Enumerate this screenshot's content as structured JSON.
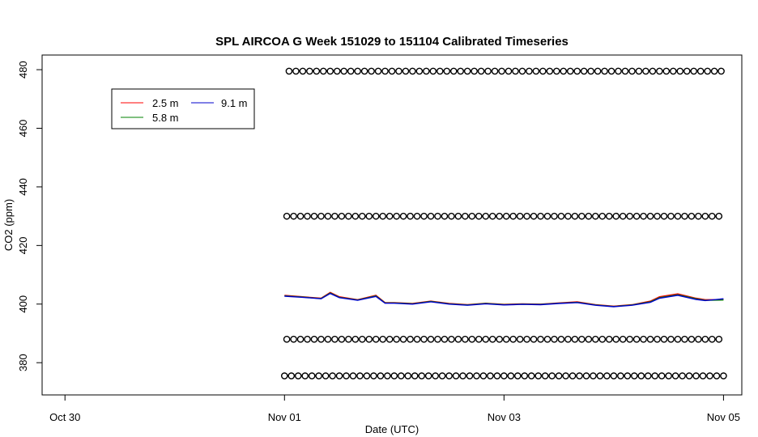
{
  "chart_data": {
    "type": "line",
    "title": "SPL AIRCOA G  Week 151029 to 151104  Calibrated Timeseries",
    "xlabel": "Date (UTC)",
    "ylabel": "CO2 (ppm)",
    "xlim": [
      "2015-10-29T19:00",
      "2015-11-05T04:00"
    ],
    "ylim": [
      369,
      485
    ],
    "x_ticks": [
      {
        "label": "Oct 30",
        "date": "2015-10-30"
      },
      {
        "label": "Nov 01",
        "date": "2015-11-01"
      },
      {
        "label": "Nov 03",
        "date": "2015-11-03"
      },
      {
        "label": "Nov 05",
        "date": "2015-11-05"
      }
    ],
    "y_ticks": [
      380,
      400,
      420,
      440,
      460,
      480
    ],
    "legend": {
      "position": "top-left",
      "entries": [
        {
          "label": "2.5 m",
          "color": "#ff0000"
        },
        {
          "label": "5.8 m",
          "color": "#008000"
        },
        {
          "label": "9.1 m",
          "color": "#0000cc"
        }
      ]
    },
    "series": [
      {
        "name": "2.5 m",
        "color": "#ff0000",
        "x": [
          "2015-11-01T00:00",
          "2015-11-01T04:00",
          "2015-11-01T08:00",
          "2015-11-01T10:00",
          "2015-11-01T12:00",
          "2015-11-01T16:00",
          "2015-11-01T20:00",
          "2015-11-01T22:00",
          "2015-11-02T00:00",
          "2015-11-02T04:00",
          "2015-11-02T08:00",
          "2015-11-02T12:00",
          "2015-11-02T16:00",
          "2015-11-02T20:00",
          "2015-11-03T00:00",
          "2015-11-03T04:00",
          "2015-11-03T08:00",
          "2015-11-03T12:00",
          "2015-11-03T16:00",
          "2015-11-03T20:00",
          "2015-11-04T00:00",
          "2015-11-04T04:00",
          "2015-11-04T08:00",
          "2015-11-04T10:00",
          "2015-11-04T14:00",
          "2015-11-04T18:00",
          "2015-11-04T20:00",
          "2015-11-05T00:00"
        ],
        "y": [
          403,
          402.5,
          402,
          404,
          402.5,
          401.5,
          403,
          400.5,
          400.5,
          400.2,
          401,
          400.2,
          399.8,
          400.3,
          399.9,
          400.1,
          400,
          400.4,
          400.8,
          399.8,
          399.3,
          399.8,
          401,
          402.5,
          403.5,
          402,
          401.5,
          401.5
        ]
      },
      {
        "name": "5.8 m",
        "color": "#008000",
        "x": [
          "2015-11-01T00:00",
          "2015-11-01T04:00",
          "2015-11-01T08:00",
          "2015-11-01T10:00",
          "2015-11-01T12:00",
          "2015-11-01T16:00",
          "2015-11-01T20:00",
          "2015-11-01T22:00",
          "2015-11-02T00:00",
          "2015-11-02T04:00",
          "2015-11-02T08:00",
          "2015-11-02T12:00",
          "2015-11-02T16:00",
          "2015-11-02T20:00",
          "2015-11-03T00:00",
          "2015-11-03T04:00",
          "2015-11-03T08:00",
          "2015-11-03T12:00",
          "2015-11-03T16:00",
          "2015-11-03T20:00",
          "2015-11-04T00:00",
          "2015-11-04T04:00",
          "2015-11-04T08:00",
          "2015-11-04T10:00",
          "2015-11-04T14:00",
          "2015-11-04T18:00",
          "2015-11-04T20:00",
          "2015-11-05T00:00"
        ],
        "y": [
          402.8,
          402.4,
          401.9,
          403.8,
          402.3,
          401.4,
          402.8,
          400.4,
          400.4,
          400.1,
          400.9,
          400.1,
          399.7,
          400.2,
          399.8,
          400,
          399.9,
          400.3,
          400.6,
          399.7,
          399.2,
          399.7,
          400.8,
          402.2,
          403.2,
          401.8,
          401.3,
          401.4
        ]
      },
      {
        "name": "9.1 m",
        "color": "#0000cc",
        "x": [
          "2015-11-01T00:00",
          "2015-11-01T04:00",
          "2015-11-01T08:00",
          "2015-11-01T10:00",
          "2015-11-01T12:00",
          "2015-11-01T16:00",
          "2015-11-01T20:00",
          "2015-11-01T22:00",
          "2015-11-02T00:00",
          "2015-11-02T04:00",
          "2015-11-02T08:00",
          "2015-11-02T12:00",
          "2015-11-02T16:00",
          "2015-11-02T20:00",
          "2015-11-03T00:00",
          "2015-11-03T04:00",
          "2015-11-03T08:00",
          "2015-11-03T12:00",
          "2015-11-03T16:00",
          "2015-11-03T20:00",
          "2015-11-04T00:00",
          "2015-11-04T04:00",
          "2015-11-04T08:00",
          "2015-11-04T10:00",
          "2015-11-04T14:00",
          "2015-11-04T18:00",
          "2015-11-04T20:00",
          "2015-11-05T00:00"
        ],
        "y": [
          402.7,
          402.3,
          401.8,
          403.6,
          402.2,
          401.3,
          402.6,
          400.3,
          400.3,
          400,
          400.8,
          400,
          399.6,
          400.1,
          399.7,
          399.9,
          399.8,
          400.2,
          400.5,
          399.6,
          399.1,
          399.6,
          400.6,
          402,
          403,
          401.6,
          401.2,
          401.8
        ]
      }
    ],
    "reference_markers": {
      "marker": "circle",
      "rows": [
        {
          "y": 479.5,
          "start": "2015-11-01T01:00",
          "end": "2015-11-05T00:00"
        },
        {
          "y": 430,
          "start": "2015-11-01T00:30",
          "end": "2015-11-05T00:00"
        },
        {
          "y": 388,
          "start": "2015-11-01T00:30",
          "end": "2015-11-05T00:00"
        },
        {
          "y": 375.5,
          "start": "2015-11-01T00:00",
          "end": "2015-11-05T00:00"
        }
      ],
      "interval_hours": 1.5
    }
  }
}
